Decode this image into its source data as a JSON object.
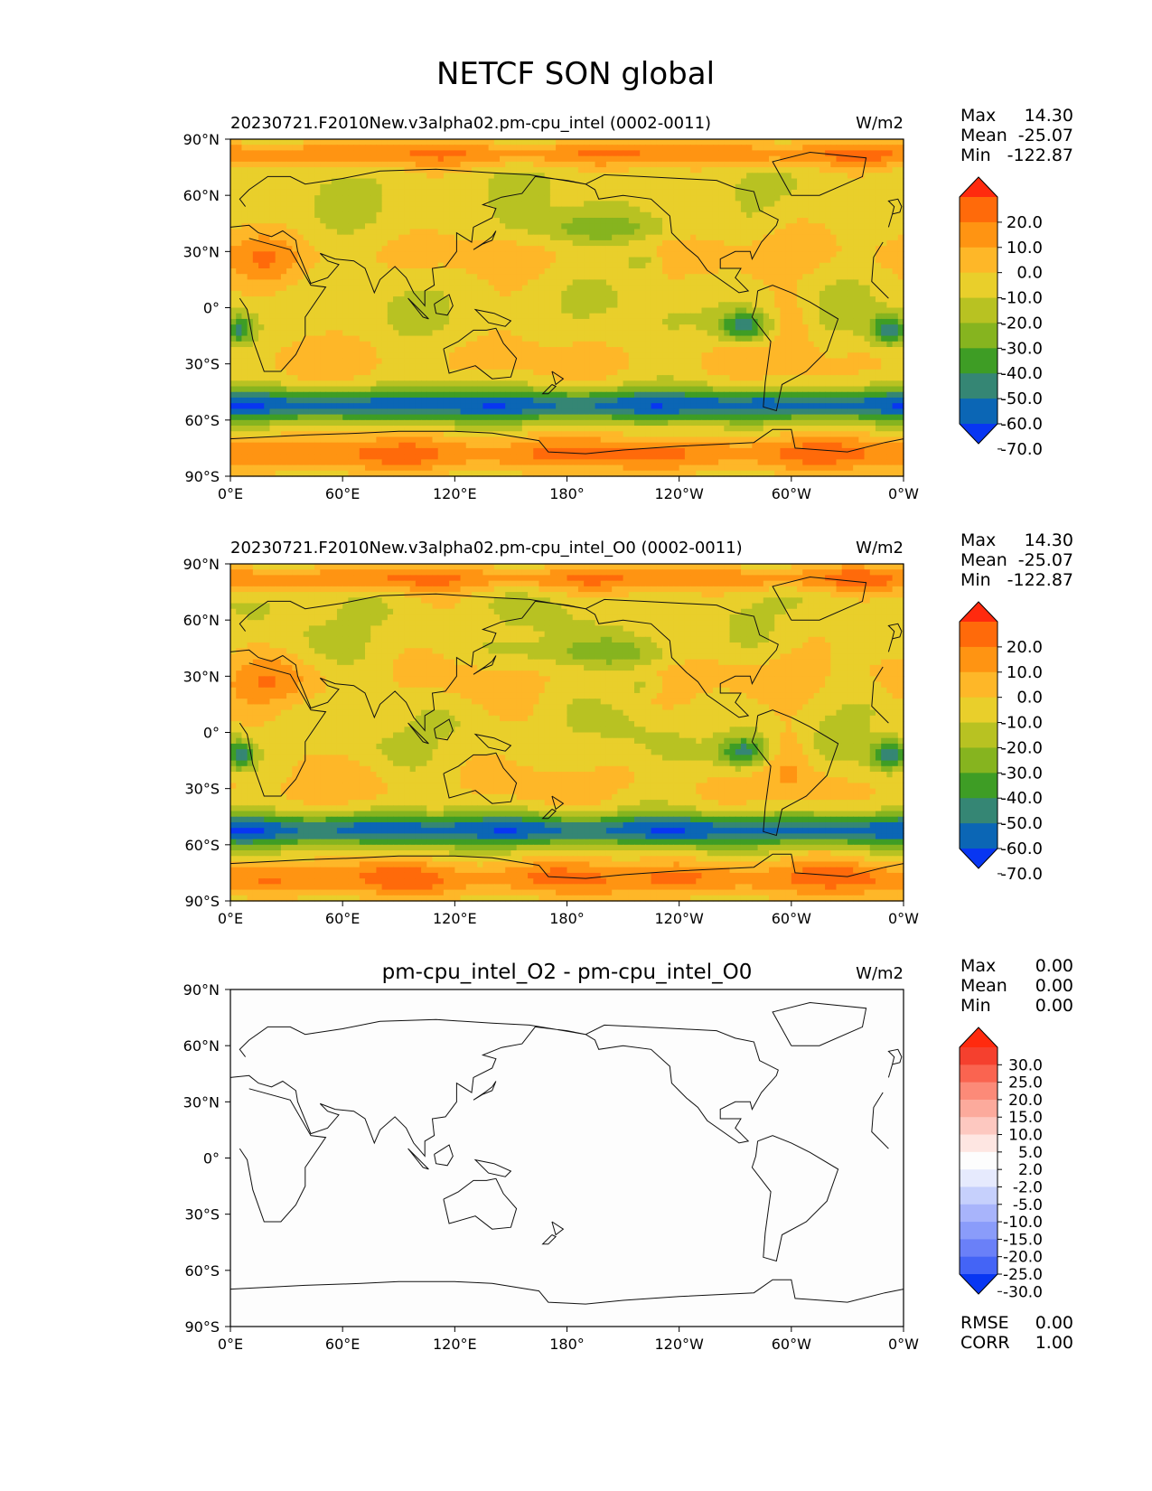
{
  "title": "NETCF SON global",
  "units": "W/m2",
  "panels": [
    {
      "subtitle": "20230721.F2010New.v3alpha02.pm-cpu_intel (0002-0011)",
      "units": "W/m2",
      "stats": [
        {
          "label": "Max",
          "value": "14.30"
        },
        {
          "label": "Mean",
          "value": "-25.07"
        },
        {
          "label": "Min",
          "value": "-122.87"
        }
      ],
      "field": "test"
    },
    {
      "subtitle": "20230721.F2010New.v3alpha02.pm-cpu_intel_O0 (0002-0011)",
      "units": "W/m2",
      "stats": [
        {
          "label": "Max",
          "value": "14.30"
        },
        {
          "label": "Mean",
          "value": "-25.07"
        },
        {
          "label": "Min",
          "value": "-122.87"
        }
      ],
      "field": "reference"
    },
    {
      "subtitle": "pm-cpu_intel_O2 - pm-cpu_intel_O0",
      "units": "W/m2",
      "stats": [
        {
          "label": "Max",
          "value": "0.00"
        },
        {
          "label": "Mean",
          "value": "0.00"
        },
        {
          "label": "Min",
          "value": "0.00"
        }
      ],
      "extra_stats": [
        {
          "label": "RMSE",
          "value": "0.00"
        },
        {
          "label": "CORR",
          "value": "1.00"
        }
      ],
      "field": "difference"
    }
  ],
  "axes": {
    "lat_ticks": [
      "90°N",
      "60°N",
      "30°N",
      "0°",
      "30°S",
      "60°S",
      "90°S"
    ],
    "lon_ticks": [
      "0°E",
      "60°E",
      "120°E",
      "180°",
      "120°W",
      "60°W",
      "0°W"
    ]
  },
  "colorbars": {
    "main": {
      "labels": [
        "20.0",
        "10.0",
        "0.0",
        "-10.0",
        "-20.0",
        "-30.0",
        "-40.0",
        "-50.0",
        "-60.0",
        "-70.0"
      ],
      "colors": [
        "#ff2a0e",
        "#ff6a0a",
        "#ff9412",
        "#feb728",
        "#e9cf2b",
        "#b8c222",
        "#86b41f",
        "#3e9d25",
        "#358674",
        "#0b66b5",
        "#0836f2"
      ]
    },
    "diff": {
      "labels": [
        "30.0",
        "25.0",
        "20.0",
        "15.0",
        "10.0",
        "5.0",
        "2.0",
        "-2.0",
        "-5.0",
        "-10.0",
        "-15.0",
        "-20.0",
        "-25.0",
        "-30.0"
      ],
      "colors": [
        "#ff2a0e",
        "#f5402e",
        "#fa6450",
        "#fc8a78",
        "#fcaa9c",
        "#fdc8c0",
        "#fee6e2",
        "#fdfdfd",
        "#e6eafd",
        "#c6d0fc",
        "#a8b4fb",
        "#8a9cfa",
        "#6a80f8",
        "#4464f6",
        "#0836f2"
      ]
    }
  },
  "chart_data": {
    "type": "map",
    "title": "NETCF SON global",
    "variable": "NETCF",
    "season": "SON",
    "units": "W/m2",
    "xlim": [
      0,
      360
    ],
    "ylim": [
      -90,
      90
    ],
    "panels": [
      {
        "name": "20230721.F2010New.v3alpha02.pm-cpu_intel (0002-0011)",
        "max": 14.3,
        "mean": -25.07,
        "min": -122.87
      },
      {
        "name": "20230721.F2010New.v3alpha02.pm-cpu_intel_O0 (0002-0011)",
        "max": 14.3,
        "mean": -25.07,
        "min": -122.87
      },
      {
        "name": "pm-cpu_intel_O2 - pm-cpu_intel_O0",
        "max": 0.0,
        "mean": 0.0,
        "min": 0.0,
        "rmse": 0.0,
        "corr": 1.0
      }
    ],
    "main_levels": [
      -70,
      -60,
      -50,
      -40,
      -30,
      -20,
      -10,
      0,
      10,
      20
    ],
    "diff_levels": [
      -30,
      -25,
      -20,
      -15,
      -10,
      -5,
      -2,
      2,
      5,
      10,
      15,
      20,
      25,
      30
    ]
  }
}
